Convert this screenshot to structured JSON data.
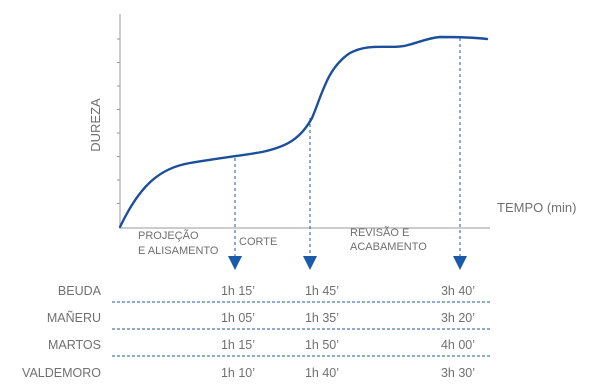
{
  "chart_data": {
    "type": "line",
    "xlabel": "TEMPO  (min)",
    "ylabel": "DUREZA",
    "grid": false,
    "phases": [
      {
        "line1": "PROJEÇÃO",
        "line2": "E ALISAMENTO"
      },
      {
        "line1": "CORTE",
        "line2": ""
      },
      {
        "line1": "REVISÃO E",
        "line2": "ACABAMENTO"
      }
    ],
    "table": {
      "rows": [
        {
          "name": "BEUDA",
          "times": [
            "1h 15’",
            "1h 45’",
            "3h 40’"
          ]
        },
        {
          "name": "MAÑERU",
          "times": [
            "1h 05’",
            "1h 35’",
            "3h 20’"
          ]
        },
        {
          "name": "MARTOS",
          "times": [
            "1h 15’",
            "1h 50’",
            "4h 00’"
          ]
        },
        {
          "name": "VALDEMORO",
          "times": [
            "1h 10’",
            "1h 40’",
            "3h 30’"
          ]
        }
      ]
    },
    "colors": {
      "curve": "#1b4f9c",
      "marker": "#1b5aa8",
      "text": "#707070",
      "axis": "#9a9a9a"
    }
  }
}
